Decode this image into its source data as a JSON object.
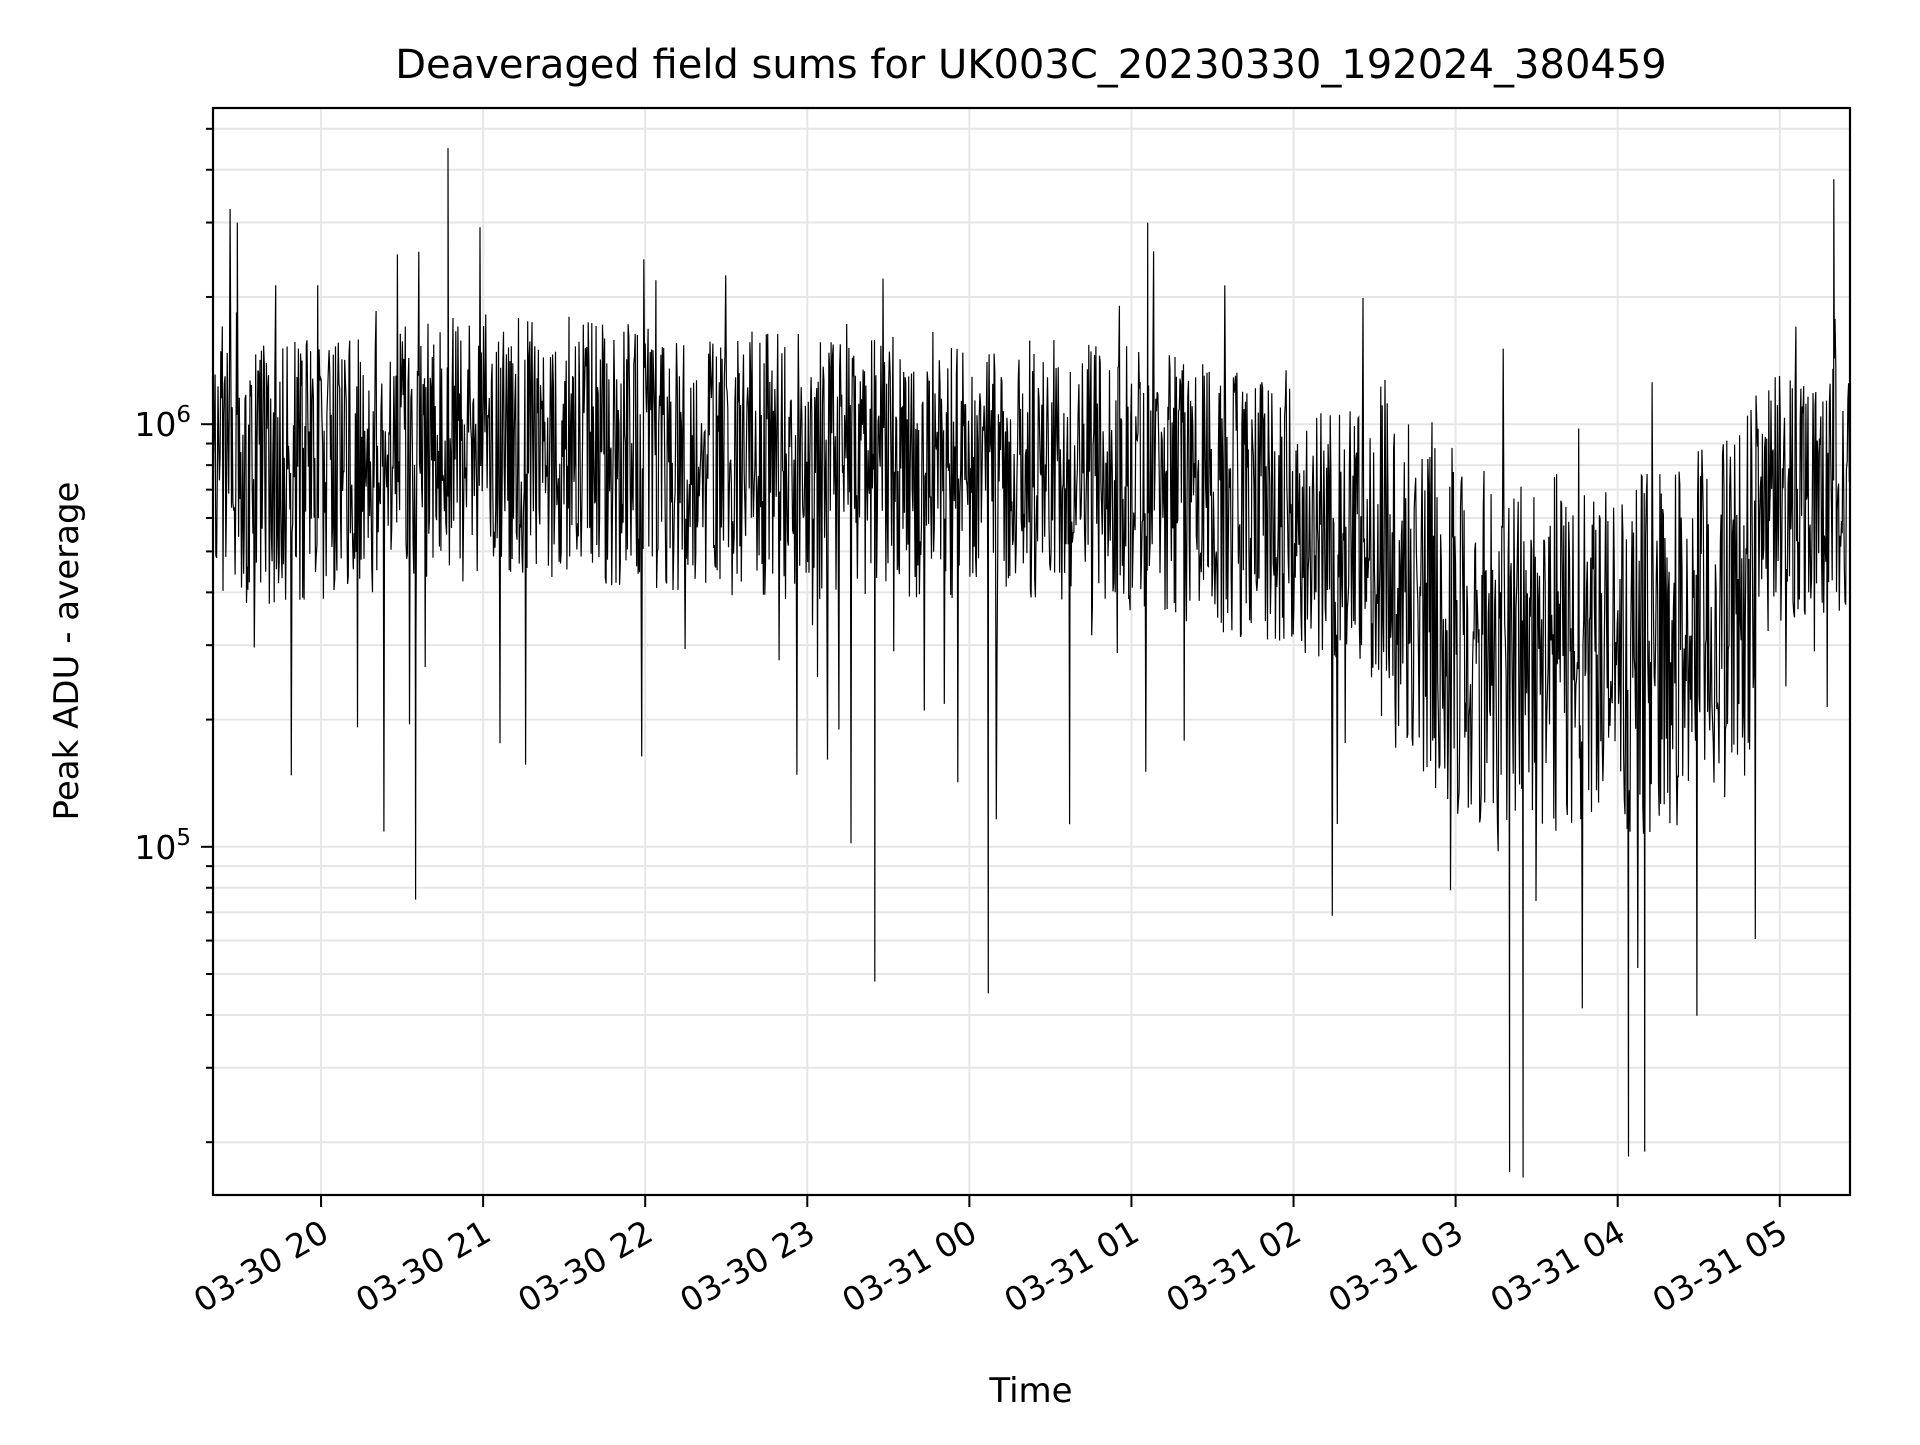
{
  "chart_data": {
    "type": "line",
    "title": "Deaveraged field sums for UK003C_20230330_192024_380459",
    "xlabel": "Time",
    "ylabel": "Peak ADU - average",
    "y_scale": "log",
    "ylim": [
      15000,
      5600000
    ],
    "xlim": [
      "2023-03-30 19:20",
      "2023-03-31 05:26"
    ],
    "grid": true,
    "legend": "none",
    "line_color": "#000000",
    "x_ticks": [
      "03-30 20",
      "03-30 21",
      "03-30 22",
      "03-30 23",
      "03-31 00",
      "03-31 01",
      "03-31 02",
      "03-31 03",
      "03-31 04",
      "03-31 05"
    ],
    "y_ticks": [
      {
        "base": "10",
        "exp": "5"
      },
      {
        "base": "10",
        "exp": "6"
      }
    ],
    "trend": {
      "x": [
        "2023-03-30 19:20",
        "2023-03-30 20:00",
        "2023-03-30 21:00",
        "2023-03-30 22:00",
        "2023-03-30 23:00",
        "2023-03-31 00:00",
        "2023-03-31 01:00",
        "2023-03-31 02:00",
        "2023-03-31 02:40",
        "2023-03-31 03:00",
        "2023-03-31 04:00",
        "2023-03-31 04:40",
        "2023-03-31 05:00",
        "2023-03-31 05:26"
      ],
      "y": [
        800000,
        850000,
        950000,
        900000,
        850000,
        850000,
        800000,
        650000,
        500000,
        350000,
        300000,
        380000,
        750000,
        800000
      ]
    },
    "notable_peaks": [
      {
        "x": "2023-03-30 19:29",
        "y": 3000000
      },
      {
        "x": "2023-03-30 20:47",
        "y": 4500000
      },
      {
        "x": "2023-03-31 01:06",
        "y": 3000000
      },
      {
        "x": "2023-03-31 05:20",
        "y": 3800000
      }
    ],
    "notable_troughs": [
      {
        "x": "2023-03-30 20:35",
        "y": 75000
      },
      {
        "x": "2023-03-30 23:25",
        "y": 48000
      },
      {
        "x": "2023-03-31 00:07",
        "y": 45000
      },
      {
        "x": "2023-03-31 03:20",
        "y": 17000
      },
      {
        "x": "2023-03-31 03:25",
        "y": 16500
      },
      {
        "x": "2023-03-31 04:04",
        "y": 18500
      },
      {
        "x": "2023-03-31 04:10",
        "y": 19000
      }
    ]
  }
}
